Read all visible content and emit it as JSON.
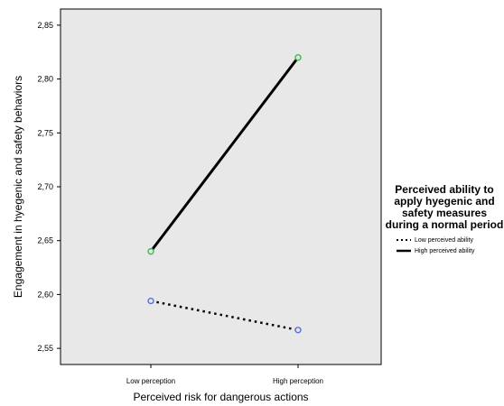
{
  "chart_data": {
    "type": "line",
    "xlabel": "Perceived risk for dangerous actions",
    "ylabel": "Engagement in hyegenic and safety behaviors",
    "categories": [
      "Low perception",
      "High perception"
    ],
    "ylim": [
      2.535,
      2.865
    ],
    "yticks": [
      "2,55",
      "2,60",
      "2,65",
      "2,70",
      "2,75",
      "2,80",
      "2,85"
    ],
    "series": [
      {
        "name": "Low perceived ability",
        "values": [
          2.594,
          2.567
        ],
        "line_style": "dotted",
        "marker_color": "#5a6fd0"
      },
      {
        "name": "High perceived ability",
        "values": [
          2.64,
          2.82
        ],
        "line_style": "solid",
        "marker_color": "#48b848"
      }
    ],
    "legend": {
      "title": "Perceived ability to apply hyegenic and safety measures during a normal period",
      "placement": "right"
    },
    "grid": false,
    "background": "#e8e8e8"
  }
}
